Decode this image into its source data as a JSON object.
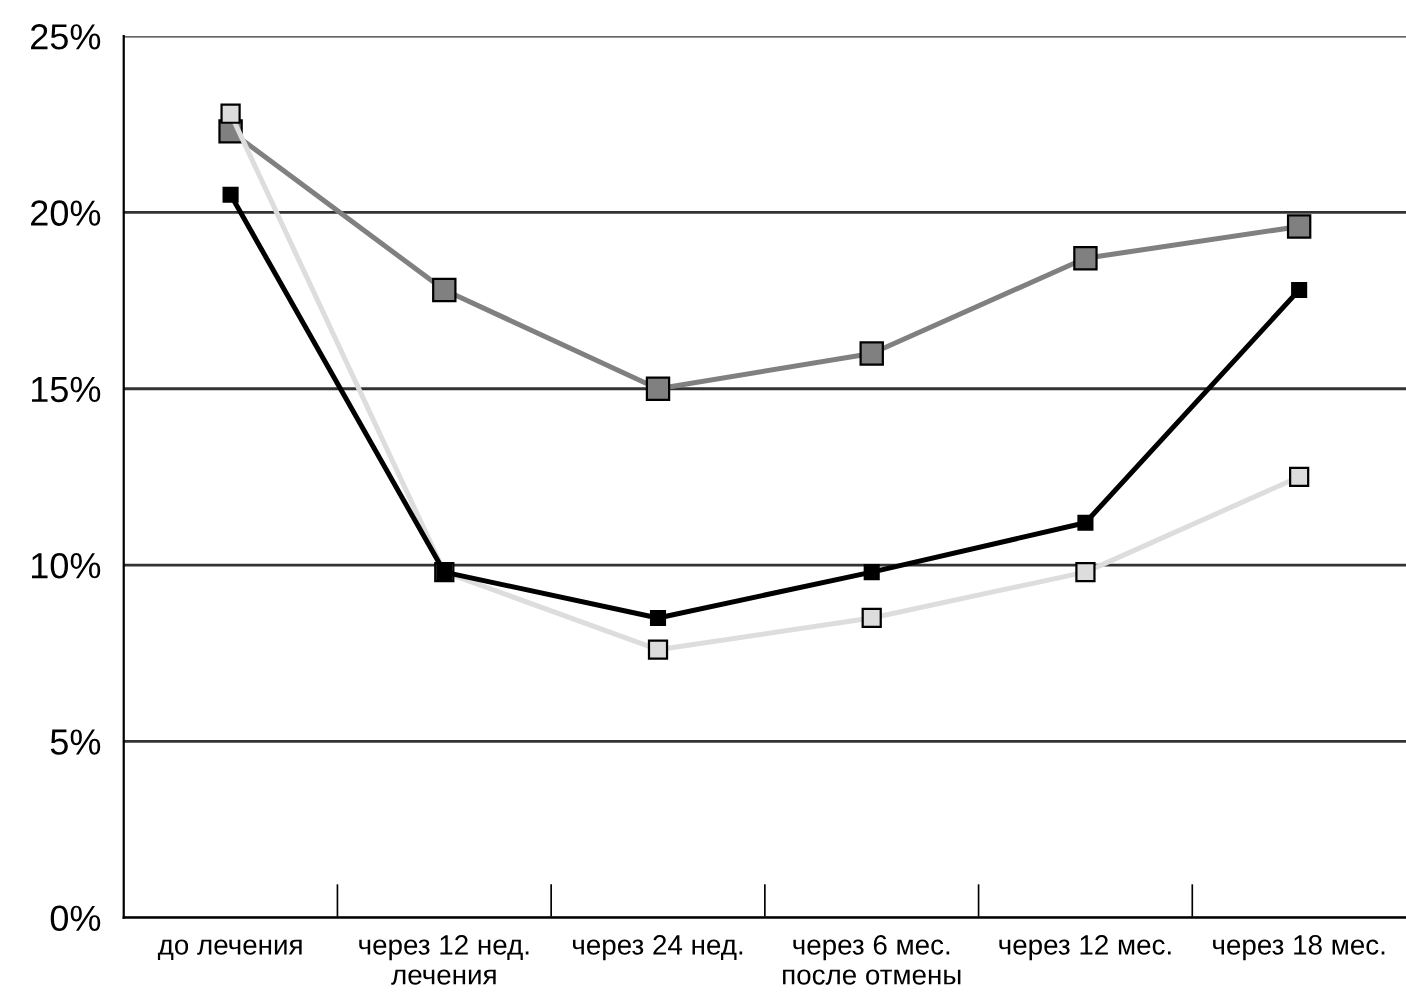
{
  "chart_data": {
    "type": "line",
    "categories": [
      "до лечения",
      "через 12 нед.\nлечения",
      "через 24 нед.",
      "через 6 мес.\nпосле отмены",
      "через 12 мес.",
      "через 18 мес."
    ],
    "series": [
      {
        "color": "#808080",
        "values": [
          22.3,
          17.8,
          15.0,
          16.0,
          18.7,
          19.6
        ]
      },
      {
        "color": "#dddddd",
        "values": [
          22.8,
          9.8,
          7.6,
          8.5,
          9.8,
          12.5
        ]
      },
      {
        "color": "#000000",
        "values": [
          20.5,
          9.8,
          8.5,
          9.8,
          11.2,
          17.8
        ]
      }
    ],
    "ylim": [
      0,
      25
    ],
    "yticks": [
      {
        "value": 0,
        "label": "0%"
      },
      {
        "value": 5,
        "label": "5%"
      },
      {
        "value": 10,
        "label": "10%"
      },
      {
        "value": 15,
        "label": "15%"
      },
      {
        "value": 20,
        "label": "20%"
      },
      {
        "value": 25,
        "label": "25%"
      }
    ],
    "grid": "y",
    "marker": "square",
    "line_style": "solid"
  }
}
